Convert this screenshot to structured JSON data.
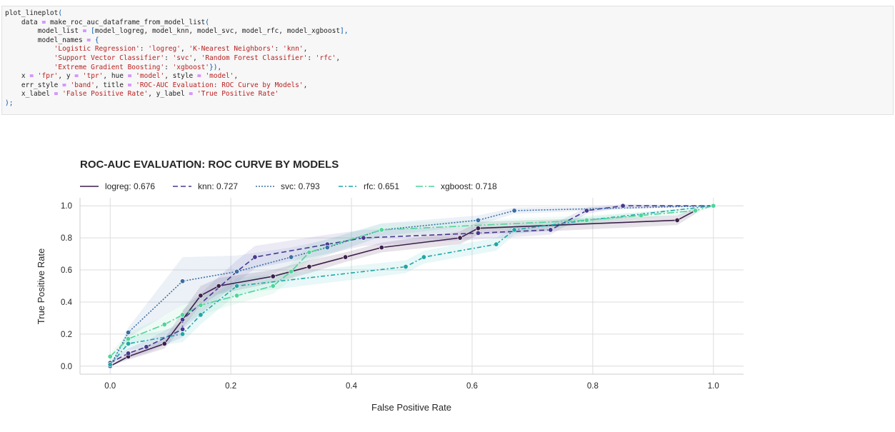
{
  "code_cell": {
    "lines": [
      [
        {
          "t": "plot_lineplot",
          "c": ""
        },
        {
          "t": "(",
          "c": "punct"
        }
      ],
      [
        {
          "t": "    data ",
          "c": ""
        },
        {
          "t": "=",
          "c": "op"
        },
        {
          "t": " make_roc_auc_dataframe_from_model_list",
          "c": ""
        },
        {
          "t": "(",
          "c": "punct"
        }
      ],
      [
        {
          "t": "        model_list ",
          "c": ""
        },
        {
          "t": "=",
          "c": "op"
        },
        {
          "t": " ",
          "c": ""
        },
        {
          "t": "[",
          "c": "punct"
        },
        {
          "t": "model_logreg, model_knn, model_svc, model_rfc, model_xgboost",
          "c": ""
        },
        {
          "t": "],",
          "c": "punct"
        }
      ],
      [
        {
          "t": "        model_names ",
          "c": ""
        },
        {
          "t": "=",
          "c": "op"
        },
        {
          "t": " ",
          "c": ""
        },
        {
          "t": "{",
          "c": "punct"
        }
      ],
      [
        {
          "t": "            ",
          "c": ""
        },
        {
          "t": "'Logistic Regression'",
          "c": "str"
        },
        {
          "t": ": ",
          "c": ""
        },
        {
          "t": "'logreg'",
          "c": "str"
        },
        {
          "t": ", ",
          "c": ""
        },
        {
          "t": "'K-Nearest Neighbors'",
          "c": "str"
        },
        {
          "t": ": ",
          "c": ""
        },
        {
          "t": "'knn'",
          "c": "str"
        },
        {
          "t": ",",
          "c": ""
        }
      ],
      [
        {
          "t": "            ",
          "c": ""
        },
        {
          "t": "'Support Vector Classifier'",
          "c": "str"
        },
        {
          "t": ": ",
          "c": ""
        },
        {
          "t": "'svc'",
          "c": "str"
        },
        {
          "t": ", ",
          "c": ""
        },
        {
          "t": "'Random Forest Classifier'",
          "c": "str"
        },
        {
          "t": ": ",
          "c": ""
        },
        {
          "t": "'rfc'",
          "c": "str"
        },
        {
          "t": ",",
          "c": ""
        }
      ],
      [
        {
          "t": "            ",
          "c": ""
        },
        {
          "t": "'Extreme Gradient Boosting'",
          "c": "str"
        },
        {
          "t": ": ",
          "c": ""
        },
        {
          "t": "'xgboost'",
          "c": "str"
        },
        {
          "t": "}),",
          "c": "punct"
        }
      ],
      [
        {
          "t": "    x ",
          "c": ""
        },
        {
          "t": "=",
          "c": "op"
        },
        {
          "t": " ",
          "c": ""
        },
        {
          "t": "'fpr'",
          "c": "str"
        },
        {
          "t": ", y ",
          "c": ""
        },
        {
          "t": "=",
          "c": "op"
        },
        {
          "t": " ",
          "c": ""
        },
        {
          "t": "'tpr'",
          "c": "str"
        },
        {
          "t": ", hue ",
          "c": ""
        },
        {
          "t": "=",
          "c": "op"
        },
        {
          "t": " ",
          "c": ""
        },
        {
          "t": "'model'",
          "c": "str"
        },
        {
          "t": ", style ",
          "c": ""
        },
        {
          "t": "=",
          "c": "op"
        },
        {
          "t": " ",
          "c": ""
        },
        {
          "t": "'model'",
          "c": "str"
        },
        {
          "t": ",",
          "c": ""
        }
      ],
      [
        {
          "t": "    err_style ",
          "c": ""
        },
        {
          "t": "=",
          "c": "op"
        },
        {
          "t": " ",
          "c": ""
        },
        {
          "t": "'band'",
          "c": "str"
        },
        {
          "t": ", title ",
          "c": ""
        },
        {
          "t": "=",
          "c": "op"
        },
        {
          "t": " ",
          "c": ""
        },
        {
          "t": "'ROC-AUC Evaluation: ROC Curve by Models'",
          "c": "str"
        },
        {
          "t": ",",
          "c": ""
        }
      ],
      [
        {
          "t": "    x_label ",
          "c": ""
        },
        {
          "t": "=",
          "c": "op"
        },
        {
          "t": " ",
          "c": ""
        },
        {
          "t": "'False Positive Rate'",
          "c": "str"
        },
        {
          "t": ", y_label ",
          "c": ""
        },
        {
          "t": "=",
          "c": "op"
        },
        {
          "t": " ",
          "c": ""
        },
        {
          "t": "'True Positive Rate'",
          "c": "str"
        }
      ],
      [
        {
          "t": ");",
          "c": "punct"
        }
      ]
    ]
  },
  "chart_data": {
    "type": "line",
    "title": "ROC-AUC EVALUATION: ROC CURVE BY MODELS",
    "xlabel": "False Positive Rate",
    "ylabel": "True Positive Rate",
    "xlim": [
      -0.05,
      1.05
    ],
    "ylim": [
      -0.05,
      1.05
    ],
    "xticks": [
      0.0,
      0.2,
      0.4,
      0.6,
      0.8,
      1.0
    ],
    "yticks": [
      0.0,
      0.2,
      0.4,
      0.6,
      0.8,
      1.0
    ],
    "tick_labels_x": [
      "0.0",
      "0.2",
      "0.4",
      "0.6",
      "0.8",
      "1.0"
    ],
    "tick_labels_y": [
      "0.0",
      "0.2",
      "0.4",
      "0.6",
      "0.8",
      "1.0"
    ],
    "grid": true,
    "legend_placement": "top, horizontal",
    "series": [
      {
        "name": "logreg: 0.676",
        "key": "logreg",
        "color": "#3b1f4a",
        "dash": "solid",
        "band_color": "#3b1f4a",
        "x": [
          0.0,
          0.03,
          0.09,
          0.12,
          0.15,
          0.18,
          0.27,
          0.33,
          0.39,
          0.45,
          0.58,
          0.61,
          0.94,
          0.97
        ],
        "y": [
          0.0,
          0.06,
          0.14,
          0.29,
          0.44,
          0.5,
          0.56,
          0.62,
          0.68,
          0.74,
          0.8,
          0.86,
          0.91,
          0.97
        ],
        "band_hw": [
          0.0,
          0.02,
          0.03,
          0.05,
          0.06,
          0.05,
          0.04,
          0.04,
          0.03,
          0.03,
          0.04,
          0.04,
          0.03,
          0.02
        ]
      },
      {
        "name": "knn: 0.727",
        "key": "knn",
        "color": "#453a8f",
        "dash": "7,4",
        "band_color": "#6a5fb0",
        "x": [
          0.0,
          0.03,
          0.06,
          0.12,
          0.12,
          0.21,
          0.24,
          0.36,
          0.42,
          0.61,
          0.73,
          0.79,
          0.85,
          1.0
        ],
        "y": [
          0.02,
          0.08,
          0.12,
          0.23,
          0.29,
          0.59,
          0.68,
          0.76,
          0.8,
          0.83,
          0.85,
          0.97,
          1.0,
          1.0
        ],
        "band_hw": [
          0.02,
          0.03,
          0.04,
          0.05,
          0.06,
          0.07,
          0.07,
          0.06,
          0.05,
          0.04,
          0.03,
          0.02,
          0.01,
          0.0
        ]
      },
      {
        "name": "svc: 0.793",
        "key": "svc",
        "color": "#3a6ea5",
        "dash": "2,2",
        "band_color": "#6e96bf",
        "x": [
          0.0,
          0.03,
          0.12,
          0.21,
          0.3,
          0.36,
          0.45,
          0.61,
          0.67,
          1.0
        ],
        "y": [
          0.0,
          0.21,
          0.53,
          0.59,
          0.68,
          0.74,
          0.85,
          0.91,
          0.97,
          1.0
        ],
        "band_hw": [
          0.0,
          0.03,
          0.15,
          0.1,
          0.06,
          0.05,
          0.04,
          0.03,
          0.02,
          0.0
        ]
      },
      {
        "name": "rfc: 0.651",
        "key": "rfc",
        "color": "#1fa6a6",
        "dash": "6,3,2,3",
        "band_color": "#4ec1c1",
        "x": [
          0.0,
          0.03,
          0.12,
          0.15,
          0.21,
          0.49,
          0.52,
          0.64,
          0.67,
          0.79,
          1.0
        ],
        "y": [
          0.01,
          0.14,
          0.2,
          0.32,
          0.5,
          0.62,
          0.68,
          0.76,
          0.85,
          0.91,
          1.0
        ],
        "band_hw": [
          0.01,
          0.04,
          0.05,
          0.06,
          0.05,
          0.04,
          0.04,
          0.04,
          0.03,
          0.02,
          0.0
        ]
      },
      {
        "name": "xgboost: 0.718",
        "key": "xgboost",
        "color": "#4fd49a",
        "dash": "10,3,2,3",
        "band_color": "#7ee0b4",
        "x": [
          0.0,
          0.03,
          0.09,
          0.12,
          0.15,
          0.21,
          0.27,
          0.3,
          0.33,
          0.45,
          0.79,
          0.88,
          0.97,
          1.0
        ],
        "y": [
          0.06,
          0.17,
          0.26,
          0.32,
          0.38,
          0.44,
          0.5,
          0.59,
          0.71,
          0.85,
          0.91,
          0.94,
          0.97,
          1.0
        ],
        "band_hw": [
          0.02,
          0.04,
          0.05,
          0.06,
          0.06,
          0.05,
          0.05,
          0.05,
          0.05,
          0.04,
          0.03,
          0.02,
          0.02,
          0.0
        ]
      }
    ]
  }
}
